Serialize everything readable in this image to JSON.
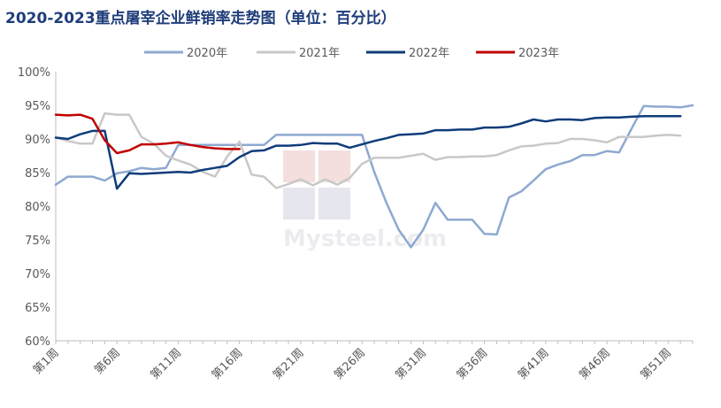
{
  "chart_data": {
    "type": "line",
    "title": "2020-2023重点屠宰企业鲜销率走势图（单位：百分比）",
    "xlabel": "",
    "ylabel": "",
    "ylim": [
      60,
      100
    ],
    "yticks": [
      "60%",
      "65%",
      "70%",
      "75%",
      "80%",
      "85%",
      "90%",
      "95%",
      "100%"
    ],
    "xticks": [
      {
        "week": 1,
        "label": "第1周"
      },
      {
        "week": 6,
        "label": "第6周"
      },
      {
        "week": 11,
        "label": "第11周"
      },
      {
        "week": 16,
        "label": "第16周"
      },
      {
        "week": 21,
        "label": "第21周"
      },
      {
        "week": 26,
        "label": "第26周"
      },
      {
        "week": 31,
        "label": "第31周"
      },
      {
        "week": 36,
        "label": "第36周"
      },
      {
        "week": 41,
        "label": "第41周"
      },
      {
        "week": 46,
        "label": "第46周"
      },
      {
        "week": 51,
        "label": "第51周"
      }
    ],
    "legend_position": "top",
    "grid": false,
    "watermark": "Mysteel.com",
    "series": [
      {
        "name": "2020年",
        "color": "#8ea9d0",
        "width": 2.5,
        "values": [
          83.2,
          84.4,
          84.4,
          84.4,
          83.8,
          84.9,
          85.2,
          85.7,
          85.5,
          85.7,
          89.1,
          89.1,
          89.1,
          89.1,
          89.1,
          89.1,
          89.1,
          89.1,
          90.6,
          90.6,
          90.6,
          90.6,
          90.6,
          90.6,
          90.6,
          90.6,
          85.1,
          80.5,
          76.5,
          73.9,
          76.5,
          80.5,
          78.0,
          78.0,
          78.0,
          75.9,
          75.8,
          81.3,
          82.2,
          83.8,
          85.5,
          86.2,
          86.7,
          87.6,
          87.6,
          88.2,
          88.0,
          91.5,
          94.9,
          94.8,
          94.8,
          94.7,
          95.0
        ]
      },
      {
        "name": "2021年",
        "color": "#c8c8c8",
        "width": 2.5,
        "values": [
          90.2,
          89.7,
          89.3,
          89.3,
          93.8,
          93.6,
          93.6,
          90.3,
          89.3,
          87.5,
          86.8,
          86.2,
          85.1,
          84.4,
          87.4,
          89.6,
          84.7,
          84.4,
          82.7,
          83.3,
          84.0,
          83.1,
          84.0,
          83.2,
          84.2,
          86.3,
          87.2,
          87.2,
          87.2,
          87.5,
          87.8,
          86.9,
          87.3,
          87.3,
          87.4,
          87.4,
          87.6,
          88.3,
          88.9,
          89.0,
          89.3,
          89.4,
          90.0,
          90.0,
          89.8,
          89.5,
          90.3,
          90.3,
          90.3,
          90.5,
          90.6,
          90.5
        ]
      },
      {
        "name": "2022年",
        "color": "#0f3c7a",
        "width": 2.5,
        "values": [
          90.2,
          90.0,
          90.7,
          91.2,
          91.2,
          82.6,
          84.9,
          84.8,
          84.9,
          85.0,
          85.1,
          85.0,
          85.4,
          85.7,
          86.0,
          87.3,
          88.2,
          88.3,
          89.0,
          89.0,
          89.1,
          89.4,
          89.3,
          89.3,
          88.7,
          89.2,
          89.7,
          90.1,
          90.6,
          90.7,
          90.8,
          91.3,
          91.3,
          91.4,
          91.4,
          91.7,
          91.7,
          91.8,
          92.3,
          92.9,
          92.6,
          92.9,
          92.9,
          92.8,
          93.1,
          93.2,
          93.2,
          93.3,
          93.4,
          93.4,
          93.4,
          93.4
        ]
      },
      {
        "name": "2023年",
        "color": "#c00000",
        "width": 2.5,
        "values": [
          93.6,
          93.5,
          93.6,
          93.0,
          89.8,
          87.9,
          88.3,
          89.2,
          89.2,
          89.3,
          89.5,
          89.1,
          88.8,
          88.6,
          88.5,
          88.5
        ]
      }
    ]
  }
}
